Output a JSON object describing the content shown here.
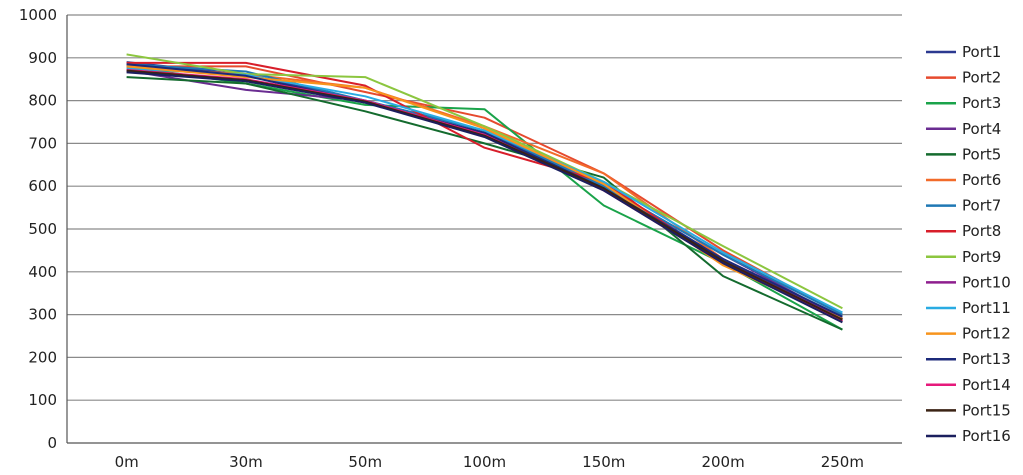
{
  "chart_data": {
    "type": "line",
    "categories": [
      "0m",
      "30m",
      "50m",
      "100m",
      "150m",
      "200m",
      "250m"
    ],
    "ylim": [
      0,
      1000
    ],
    "yticks": [
      0,
      100,
      200,
      300,
      400,
      500,
      600,
      700,
      800,
      900,
      1000
    ],
    "grid": true,
    "legend_position": "right",
    "series": [
      {
        "name": "Port1",
        "color": "#2b3990",
        "values": [
          890,
          860,
          800,
          720,
          600,
          430,
          290
        ]
      },
      {
        "name": "Port2",
        "color": "#e64a2e",
        "values": [
          880,
          880,
          820,
          760,
          630,
          450,
          300
        ]
      },
      {
        "name": "Port3",
        "color": "#1aa34a",
        "values": [
          880,
          840,
          790,
          780,
          555,
          420,
          265
        ]
      },
      {
        "name": "Port4",
        "color": "#6a2c91",
        "values": [
          870,
          825,
          800,
          730,
          600,
          440,
          290
        ]
      },
      {
        "name": "Port5",
        "color": "#146b2e",
        "values": [
          855,
          840,
          775,
          700,
          620,
          390,
          265
        ]
      },
      {
        "name": "Port6",
        "color": "#f26b2a",
        "values": [
          878,
          862,
          830,
          740,
          630,
          430,
          290
        ]
      },
      {
        "name": "Port7",
        "color": "#1f78b4",
        "values": [
          885,
          868,
          800,
          730,
          600,
          440,
          300
        ]
      },
      {
        "name": "Port8",
        "color": "#d81e2a",
        "values": [
          888,
          888,
          835,
          690,
          610,
          420,
          285
        ]
      },
      {
        "name": "Port9",
        "color": "#8cc63f",
        "values": [
          908,
          862,
          855,
          740,
          610,
          460,
          315
        ]
      },
      {
        "name": "Port10",
        "color": "#8e1e8e",
        "values": [
          868,
          848,
          798,
          720,
          590,
          430,
          290
        ]
      },
      {
        "name": "Port11",
        "color": "#29abe2",
        "values": [
          875,
          860,
          810,
          730,
          610,
          445,
          305
        ]
      },
      {
        "name": "Port12",
        "color": "#f7941d",
        "values": [
          880,
          855,
          830,
          735,
          605,
          415,
          290
        ]
      },
      {
        "name": "Port13",
        "color": "#1c2a7a",
        "values": [
          885,
          858,
          795,
          725,
          595,
          430,
          295
        ]
      },
      {
        "name": "Port14",
        "color": "#e6197b",
        "values": [
          872,
          850,
          800,
          720,
          590,
          420,
          285
        ]
      },
      {
        "name": "Port15",
        "color": "#3b2314",
        "values": [
          870,
          848,
          798,
          718,
          595,
          425,
          288
        ]
      },
      {
        "name": "Port16",
        "color": "#1b1f5e",
        "values": [
          866,
          845,
          795,
          715,
          590,
          420,
          282
        ]
      }
    ]
  }
}
